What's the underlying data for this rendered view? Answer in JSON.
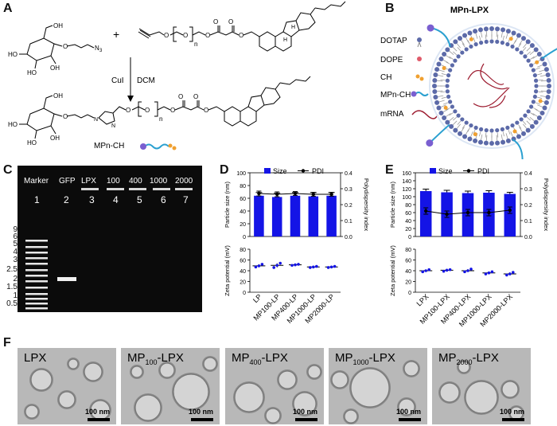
{
  "panels": {
    "A": {
      "label": "A",
      "reaction_plus": "+",
      "conditions_left": "CuI",
      "conditions_right": "DCM",
      "product_label": "MPn-CH",
      "atoms": {
        "oh": "OH",
        "ho": "HO",
        "o": "O",
        "n3": "N",
        "n3_sub": "3",
        "n_sub": "n",
        "n": "N",
        "h": "H"
      }
    },
    "B": {
      "label": "B",
      "title": "MPn-LPX",
      "legend": [
        "DOTAP",
        "DOPE",
        "CH",
        "MPn-CH",
        "mRNA"
      ]
    },
    "C": {
      "label": "C",
      "lane_headers": [
        "Marker",
        "GFP",
        "LPX",
        "100",
        "400",
        "1000",
        "2000"
      ],
      "lane_numbers": [
        "1",
        "2",
        "3",
        "4",
        "5",
        "6",
        "7"
      ],
      "marker_sizes": [
        "9",
        "6",
        "5",
        "4",
        "3",
        "2.5",
        "2",
        "1.5",
        "1",
        "0.5"
      ]
    },
    "D": {
      "label": "D",
      "legend_size": "Size",
      "legend_pdi": "PDI",
      "size_axis_label": "Particle size (nm)",
      "pdi_axis_label": "Polydispersity index",
      "zeta_axis_label": "Zeta potential (mV)",
      "size_ticks": [
        "0",
        "20",
        "40",
        "60",
        "80",
        "100"
      ],
      "pdi_ticks": [
        "0.0",
        "0.1",
        "0.2",
        "0.3",
        "0.4"
      ],
      "zeta_ticks": [
        "0",
        "20",
        "40",
        "60",
        "80"
      ],
      "categories": [
        "LP",
        "MP100-LP",
        "MP400-LP",
        "MP1000-LP",
        "MP2000-LP"
      ]
    },
    "E": {
      "label": "E",
      "legend_size": "Size",
      "legend_pdi": "PDI",
      "size_axis_label": "Particle size (nm)",
      "pdi_axis_label": "Polydispersity index",
      "zeta_axis_label": "Zeta potential (mV)",
      "size_ticks": [
        "0",
        "20",
        "40",
        "60",
        "80",
        "100",
        "120",
        "140",
        "160"
      ],
      "pdi_ticks": [
        "0.0",
        "0.1",
        "0.2",
        "0.3",
        "0.4"
      ],
      "zeta_ticks": [
        "0",
        "20",
        "40",
        "60",
        "80"
      ],
      "categories": [
        "LPX",
        "MP100-LPX",
        "MP400-LPX",
        "MP1000-LPX",
        "MP2000-LPX"
      ]
    },
    "F": {
      "label": "F",
      "images": [
        {
          "prefix": "LPX",
          "sub": "",
          "suffix": "",
          "scale": "100 nm"
        },
        {
          "prefix": "MP",
          "sub": "100",
          "suffix": "-LPX",
          "scale": "100 nm"
        },
        {
          "prefix": "MP",
          "sub": "400",
          "suffix": "-LPX",
          "scale": "100 nm"
        },
        {
          "prefix": "MP",
          "sub": "1000",
          "suffix": "-LPX",
          "scale": "100 nm"
        },
        {
          "prefix": "MP",
          "sub": "2000",
          "suffix": "-LPX",
          "scale": "100 nm"
        }
      ]
    }
  },
  "colors": {
    "bar_blue": "#1414e6",
    "lipid_head": "#5c6aa8",
    "mrna": "#9c1a2e",
    "peg": "#2aa0d0",
    "chol": "#f0a030",
    "gel_band": "#e8e8e8"
  },
  "chart_data": [
    {
      "id": "D-size-pdi",
      "type": "bar",
      "categories": [
        "LP",
        "MP100-LP",
        "MP400-LP",
        "MP1000-LP",
        "MP2000-LP"
      ],
      "series": [
        {
          "name": "Size",
          "axis": "left",
          "values": [
            64,
            62,
            64,
            63,
            64
          ],
          "errors": [
            5,
            6,
            5,
            6,
            5
          ]
        },
        {
          "name": "PDI",
          "axis": "right",
          "type": "line",
          "values": [
            0.27,
            0.265,
            0.27,
            0.265,
            0.265
          ],
          "errors": [
            0.015,
            0.015,
            0.012,
            0.012,
            0.012
          ]
        }
      ],
      "ylabel": "Particle size (nm)",
      "ylabel_right": "Polydispersity index",
      "ylim": [
        0,
        100
      ],
      "ylim_right": [
        0,
        0.4
      ]
    },
    {
      "id": "D-zeta",
      "type": "scatter",
      "categories": [
        "LP",
        "MP100-LP",
        "MP400-LP",
        "MP1000-LP",
        "MP2000-LP"
      ],
      "values": [
        49,
        50,
        51,
        47,
        47
      ],
      "points": [
        [
          47,
          49,
          52
        ],
        [
          46,
          50,
          54
        ],
        [
          50,
          51,
          52
        ],
        [
          46,
          47,
          48
        ],
        [
          46,
          47,
          48
        ]
      ],
      "ylabel": "Zeta potential (mV)",
      "ylim": [
        0,
        80
      ]
    },
    {
      "id": "E-size-pdi",
      "type": "bar",
      "categories": [
        "LPX",
        "MP100-LPX",
        "MP400-LPX",
        "MP1000-LPX",
        "MP2000-LPX"
      ],
      "series": [
        {
          "name": "Size",
          "axis": "left",
          "values": [
            114,
            111,
            109,
            110,
            107
          ],
          "errors": [
            5,
            5,
            5,
            5,
            4
          ]
        },
        {
          "name": "PDI",
          "axis": "right",
          "type": "line",
          "values": [
            0.16,
            0.14,
            0.15,
            0.15,
            0.165
          ],
          "errors": [
            0.02,
            0.02,
            0.02,
            0.02,
            0.02
          ]
        }
      ],
      "ylabel": "Particle size (nm)",
      "ylabel_right": "Polydispersity index",
      "ylim": [
        0,
        160
      ],
      "ylim_right": [
        0,
        0.4
      ]
    },
    {
      "id": "E-zeta",
      "type": "scatter",
      "categories": [
        "LPX",
        "MP100-LPX",
        "MP400-LPX",
        "MP1000-LPX",
        "MP2000-LPX"
      ],
      "values": [
        40,
        41,
        40,
        36,
        34
      ],
      "points": [
        [
          38,
          40,
          42
        ],
        [
          39,
          41,
          42
        ],
        [
          38,
          40,
          43
        ],
        [
          34,
          36,
          38
        ],
        [
          32,
          34,
          37
        ]
      ],
      "ylabel": "Zeta potential (mV)",
      "ylim": [
        0,
        80
      ]
    }
  ]
}
